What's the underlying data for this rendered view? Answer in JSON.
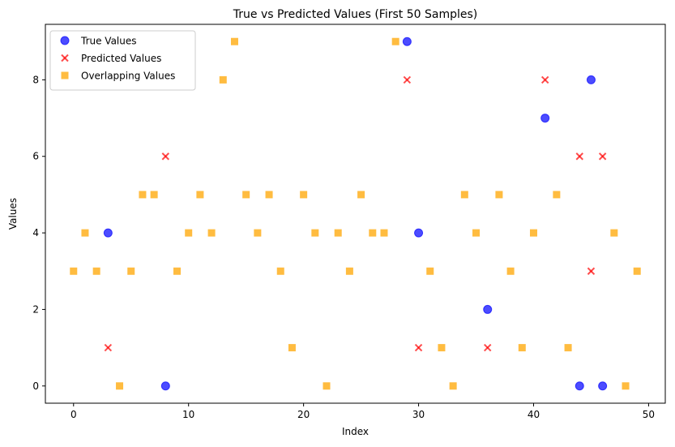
{
  "chart_data": {
    "type": "scatter",
    "title": "True vs Predicted Values (First 50 Samples)",
    "xlabel": "Index",
    "ylabel": "Values",
    "xlim": [
      -2.45,
      51.45
    ],
    "ylim": [
      -0.45,
      9.45
    ],
    "x_ticks": [
      0,
      10,
      20,
      30,
      40,
      50
    ],
    "y_ticks": [
      0,
      2,
      4,
      6,
      8
    ],
    "grid": false,
    "legend_position": "top-left",
    "colors": {
      "true": "#0000ff",
      "predicted": "#ff0000",
      "overlap": "#ffa500"
    },
    "series": [
      {
        "name": "True Values",
        "marker": "circle",
        "points": [
          [
            3,
            4
          ],
          [
            8,
            0
          ],
          [
            29,
            9
          ],
          [
            30,
            4
          ],
          [
            36,
            2
          ],
          [
            41,
            7
          ],
          [
            44,
            0
          ],
          [
            45,
            8
          ],
          [
            46,
            0
          ]
        ]
      },
      {
        "name": "Predicted Values",
        "marker": "x",
        "points": [
          [
            3,
            1
          ],
          [
            8,
            6
          ],
          [
            29,
            8
          ],
          [
            30,
            1
          ],
          [
            36,
            1
          ],
          [
            41,
            8
          ],
          [
            44,
            6
          ],
          [
            45,
            3
          ],
          [
            46,
            6
          ]
        ]
      },
      {
        "name": "Overlapping Values",
        "marker": "square",
        "points": [
          [
            0,
            3
          ],
          [
            1,
            4
          ],
          [
            2,
            3
          ],
          [
            4,
            0
          ],
          [
            5,
            3
          ],
          [
            6,
            5
          ],
          [
            7,
            5
          ],
          [
            9,
            3
          ],
          [
            10,
            4
          ],
          [
            11,
            5
          ],
          [
            12,
            4
          ],
          [
            13,
            8
          ],
          [
            14,
            9
          ],
          [
            15,
            5
          ],
          [
            16,
            4
          ],
          [
            17,
            5
          ],
          [
            18,
            3
          ],
          [
            19,
            1
          ],
          [
            20,
            5
          ],
          [
            21,
            4
          ],
          [
            22,
            0
          ],
          [
            23,
            4
          ],
          [
            24,
            3
          ],
          [
            25,
            5
          ],
          [
            26,
            4
          ],
          [
            27,
            4
          ],
          [
            28,
            9
          ],
          [
            31,
            3
          ],
          [
            32,
            1
          ],
          [
            33,
            0
          ],
          [
            34,
            5
          ],
          [
            35,
            4
          ],
          [
            37,
            5
          ],
          [
            38,
            3
          ],
          [
            39,
            1
          ],
          [
            40,
            4
          ],
          [
            42,
            5
          ],
          [
            43,
            1
          ],
          [
            47,
            4
          ],
          [
            48,
            0
          ],
          [
            49,
            3
          ]
        ]
      }
    ]
  }
}
